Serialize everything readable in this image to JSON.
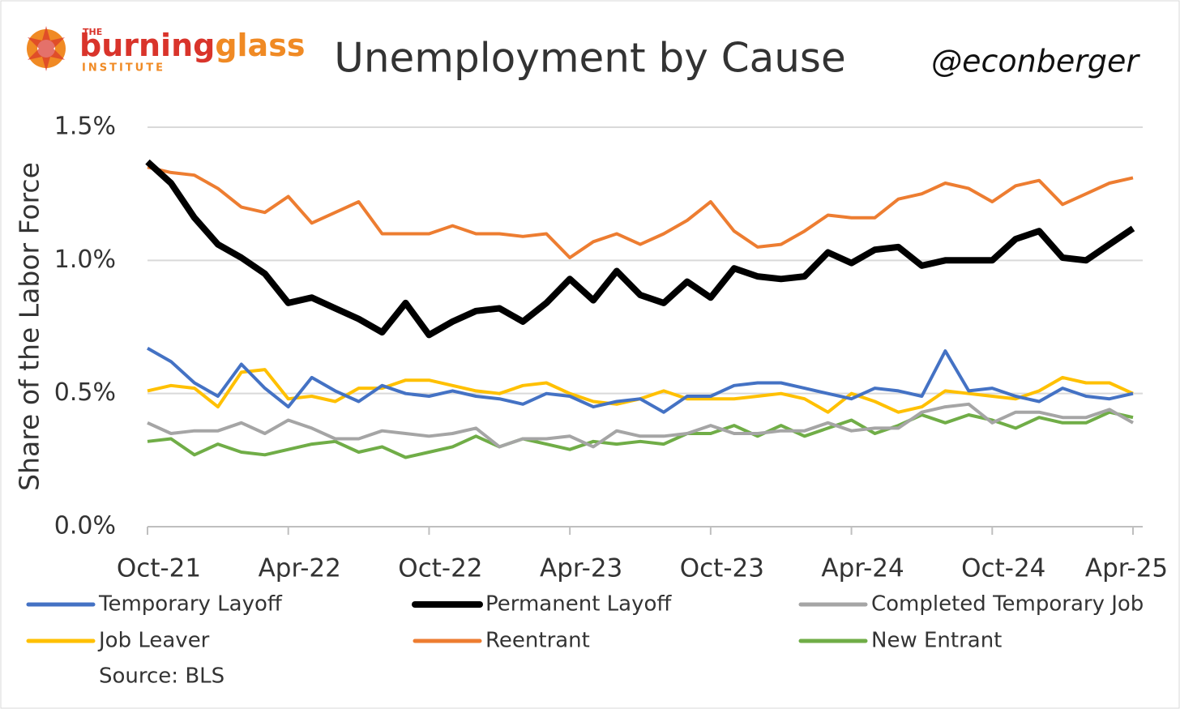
{
  "logo": {
    "the": "THE",
    "name1": "burning",
    "name2": "glass",
    "sub": "INSTITUTE"
  },
  "handle": "@econberger",
  "chart_data": {
    "type": "line",
    "title": "Unemployment by Cause",
    "ylabel": "Share of the Labor Force",
    "source": "Source: BLS",
    "categories": [
      "Oct-21",
      null,
      null,
      null,
      null,
      null,
      "Apr-22",
      null,
      null,
      null,
      null,
      null,
      "Oct-22",
      null,
      null,
      null,
      null,
      null,
      "Apr-23",
      null,
      null,
      null,
      null,
      null,
      "Oct-23",
      null,
      null,
      null,
      null,
      null,
      "Apr-24",
      null,
      null,
      null,
      null,
      null,
      "Oct-24",
      null,
      null,
      null,
      null,
      null,
      "Apr-25"
    ],
    "ylim": [
      0,
      1.5
    ],
    "yticks": [
      {
        "value": 0,
        "label": "0.0%"
      },
      {
        "value": 0.5,
        "label": "0.5%"
      },
      {
        "value": 1.0,
        "label": "1.0%"
      },
      {
        "value": 1.5,
        "label": "1.5%"
      }
    ],
    "grid": true,
    "series": [
      {
        "name": "Temporary Layoff",
        "color": "#4472c4",
        "values": [
          0.67,
          0.62,
          0.54,
          0.49,
          0.61,
          0.52,
          0.45,
          0.56,
          0.51,
          0.47,
          0.53,
          0.5,
          0.49,
          0.51,
          0.49,
          0.48,
          0.46,
          0.5,
          0.49,
          0.45,
          0.47,
          0.48,
          0.43,
          0.49,
          0.49,
          0.53,
          0.54,
          0.54,
          0.52,
          0.5,
          0.48,
          0.52,
          0.51,
          0.49,
          0.66,
          0.51,
          0.52,
          0.49,
          0.47,
          0.52,
          0.49,
          0.48,
          0.5
        ]
      },
      {
        "name": "Permanent Layoff",
        "color": "#000000",
        "values": [
          1.37,
          1.29,
          1.16,
          1.06,
          1.01,
          0.95,
          0.84,
          0.86,
          0.82,
          0.78,
          0.73,
          0.84,
          0.72,
          0.77,
          0.81,
          0.82,
          0.77,
          0.84,
          0.93,
          0.85,
          0.96,
          0.87,
          0.84,
          0.92,
          0.86,
          0.97,
          0.94,
          0.93,
          0.94,
          1.03,
          0.99,
          1.04,
          1.05,
          0.98,
          1.0,
          1.0,
          1.0,
          1.08,
          1.11,
          1.01,
          1.0,
          1.06,
          1.12
        ]
      },
      {
        "name": "Completed Temporary Job",
        "color": "#a5a5a5",
        "values": [
          0.39,
          0.35,
          0.36,
          0.36,
          0.39,
          0.35,
          0.4,
          0.37,
          0.33,
          0.33,
          0.36,
          0.35,
          0.34,
          0.35,
          0.37,
          0.3,
          0.33,
          0.33,
          0.34,
          0.3,
          0.36,
          0.34,
          0.34,
          0.35,
          0.38,
          0.35,
          0.35,
          0.36,
          0.36,
          0.39,
          0.36,
          0.37,
          0.37,
          0.43,
          0.45,
          0.46,
          0.39,
          0.43,
          0.43,
          0.41,
          0.41,
          0.44,
          0.39
        ]
      },
      {
        "name": "Job Leaver",
        "color": "#ffc000",
        "values": [
          0.51,
          0.53,
          0.52,
          0.45,
          0.58,
          0.59,
          0.48,
          0.49,
          0.47,
          0.52,
          0.52,
          0.55,
          0.55,
          0.53,
          0.51,
          0.5,
          0.53,
          0.54,
          0.5,
          0.47,
          0.46,
          0.48,
          0.51,
          0.48,
          0.48,
          0.48,
          0.49,
          0.5,
          0.48,
          0.43,
          0.5,
          0.47,
          0.43,
          0.45,
          0.51,
          0.5,
          0.49,
          0.48,
          0.51,
          0.56,
          0.54,
          0.54,
          0.5
        ]
      },
      {
        "name": "Reentrant",
        "color": "#ed7d31",
        "values": [
          1.35,
          1.33,
          1.32,
          1.27,
          1.2,
          1.18,
          1.24,
          1.14,
          1.18,
          1.22,
          1.1,
          1.1,
          1.1,
          1.13,
          1.1,
          1.1,
          1.09,
          1.1,
          1.01,
          1.07,
          1.1,
          1.06,
          1.1,
          1.15,
          1.22,
          1.11,
          1.05,
          1.06,
          1.11,
          1.17,
          1.16,
          1.16,
          1.23,
          1.25,
          1.29,
          1.27,
          1.22,
          1.28,
          1.3,
          1.21,
          1.25,
          1.29,
          1.31
        ]
      },
      {
        "name": "New Entrant",
        "color": "#70ad47",
        "values": [
          0.32,
          0.33,
          0.27,
          0.31,
          0.28,
          0.27,
          0.29,
          0.31,
          0.32,
          0.28,
          0.3,
          0.26,
          0.28,
          0.3,
          0.34,
          0.3,
          0.33,
          0.31,
          0.29,
          0.32,
          0.31,
          0.32,
          0.31,
          0.35,
          0.35,
          0.38,
          0.34,
          0.38,
          0.34,
          0.37,
          0.4,
          0.35,
          0.38,
          0.42,
          0.39,
          0.42,
          0.4,
          0.37,
          0.41,
          0.39,
          0.39,
          0.43,
          0.41
        ]
      }
    ]
  }
}
